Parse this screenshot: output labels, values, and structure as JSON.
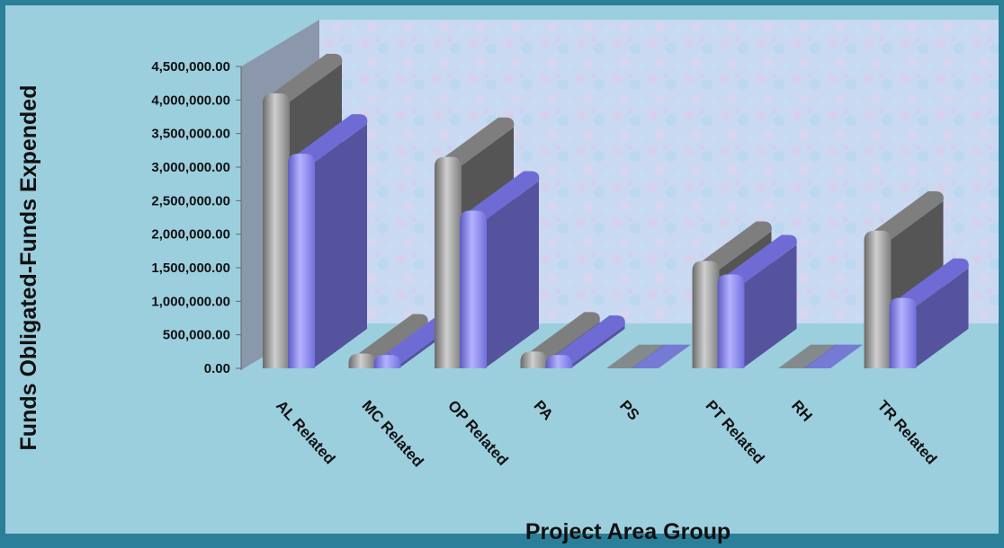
{
  "chart_data": {
    "type": "bar",
    "title": "",
    "xlabel": "Project Area Group",
    "ylabel": "Funds Obligated-Funds Expended",
    "categories": [
      "AL Related",
      "MC Related",
      "OP Related",
      "PA",
      "PS",
      "PT Related",
      "RH",
      "TR Related"
    ],
    "series": [
      {
        "values": [
          4100000,
          220000,
          3150000,
          250000,
          0,
          1600000,
          0,
          2050000
        ],
        "color": "#8f8f8f"
      },
      {
        "values": [
          3200000,
          200000,
          2350000,
          200000,
          0,
          1400000,
          0,
          1050000
        ],
        "color": "#7b79e0"
      }
    ],
    "ylim": [
      0,
      4500000
    ],
    "y_ticks": [
      "0.00",
      "500,000.00",
      "1,000,000.00",
      "1,500,000.00",
      "2,000,000.00",
      "2,500,000.00",
      "3,000,000.00",
      "3,500,000.00",
      "4,000,000.00",
      "4,500,000.00"
    ],
    "grid": false,
    "legend": "none",
    "style": "3d-clustered-column"
  }
}
